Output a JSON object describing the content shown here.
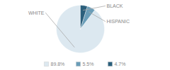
{
  "chart_data": {
    "type": "pie",
    "categories": [
      "WHITE",
      "HISPANIC",
      "BLACK"
    ],
    "values": [
      89.8,
      5.5,
      4.7
    ],
    "value_labels": [
      "89.8%",
      "5.5%",
      "4.7%"
    ],
    "colors": [
      "#dce8f0",
      "#6a9db8",
      "#2b5f7c"
    ],
    "legend": "bottom"
  }
}
